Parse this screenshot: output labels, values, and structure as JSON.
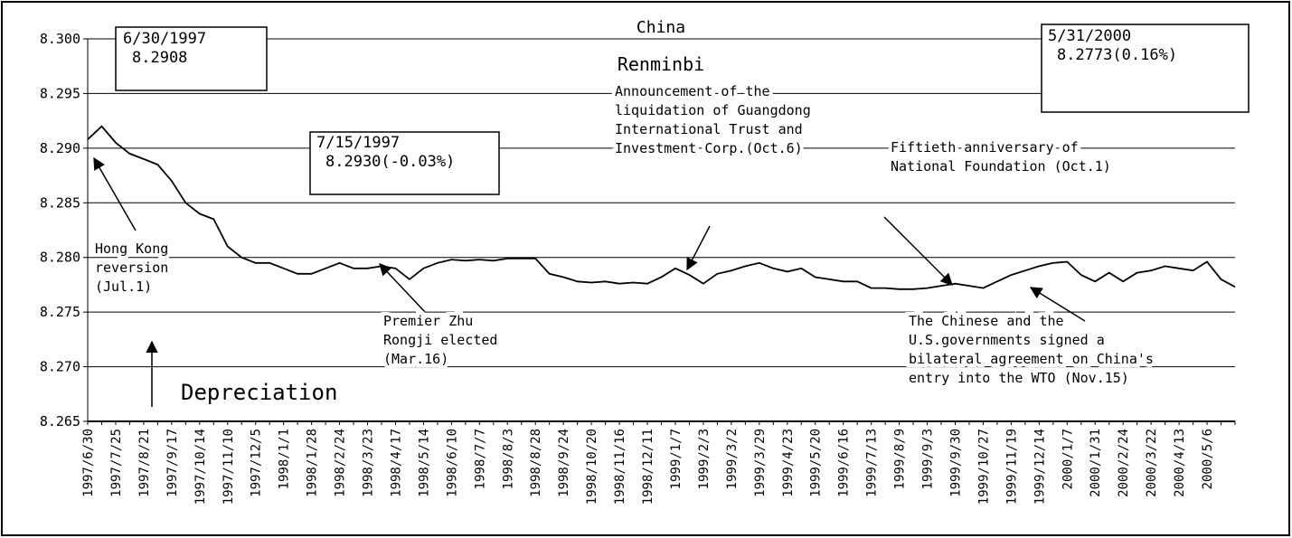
{
  "chart_data": {
    "type": "line",
    "title": "China",
    "subtitle": "Renminbi",
    "categories": [
      "1997/6/30",
      null,
      "1997/7/25",
      null,
      "1997/8/21",
      null,
      "1997/9/17",
      null,
      "1997/10/14",
      null,
      "1997/11/10",
      null,
      "1997/12/5",
      null,
      "1998/1/1",
      null,
      "1998/1/28",
      null,
      "1998/2/24",
      null,
      "1998/3/23",
      null,
      "1998/4/17",
      null,
      "1998/5/14",
      null,
      "1998/6/10",
      null,
      "1998/7/7",
      null,
      "1998/8/3",
      null,
      "1998/8/28",
      null,
      "1998/9/24",
      null,
      "1998/10/20",
      null,
      "1998/11/16",
      null,
      "1998/12/11",
      null,
      "1999/1/7",
      null,
      "1999/2/3",
      null,
      "1999/3/2",
      null,
      "1999/3/29",
      null,
      "1999/4/23",
      null,
      "1999/5/20",
      null,
      "1999/6/16",
      null,
      "1999/7/13",
      null,
      "1999/8/9",
      null,
      "1999/9/3",
      null,
      "1999/9/30",
      null,
      "1999/10/27",
      null,
      "1999/11/19",
      null,
      "1999/12/14",
      null,
      "2000/1/7",
      null,
      "2000/1/31",
      null,
      "2000/2/24",
      null,
      "2000/3/22",
      null,
      "2000/4/13",
      null,
      "2000/5/6",
      null,
      null
    ],
    "series": [
      {
        "name": "Renminbi",
        "color": "#000000",
        "values": [
          8.2908,
          8.292,
          8.2905,
          8.2895,
          8.289,
          8.2885,
          8.287,
          8.285,
          8.284,
          8.2835,
          8.281,
          8.28,
          8.2795,
          8.2795,
          8.279,
          8.2785,
          8.2785,
          8.279,
          8.2795,
          8.279,
          8.279,
          8.2792,
          8.279,
          8.278,
          8.279,
          8.2795,
          8.2798,
          8.2797,
          8.2798,
          8.2797,
          8.2799,
          8.2799,
          8.2799,
          8.2785,
          8.2782,
          8.2778,
          8.2777,
          8.2778,
          8.2776,
          8.2777,
          8.2776,
          8.2782,
          8.279,
          8.2784,
          8.2776,
          8.2785,
          8.2788,
          8.2792,
          8.2795,
          8.279,
          8.2787,
          8.279,
          8.2782,
          8.278,
          8.2778,
          8.2778,
          8.2772,
          8.2772,
          8.2771,
          8.2771,
          8.2772,
          8.2774,
          8.2776,
          8.2774,
          8.2772,
          8.2778,
          8.2784,
          8.2788,
          8.2792,
          8.2795,
          8.2796,
          8.2784,
          8.2778,
          8.2786,
          8.2778,
          8.2786,
          8.2788,
          8.2792,
          8.279,
          8.2788,
          8.2796,
          8.278,
          8.2773
        ]
      }
    ],
    "ylim": [
      8.265,
      8.3
    ],
    "yticks": [
      {
        "value": 8.265,
        "label": "8.265"
      },
      {
        "value": 8.27,
        "label": "8.270"
      },
      {
        "value": 8.275,
        "label": "8.275"
      },
      {
        "value": 8.28,
        "label": "8.280"
      },
      {
        "value": 8.285,
        "label": "8.285"
      },
      {
        "value": 8.29,
        "label": "8.290"
      },
      {
        "value": 8.295,
        "label": "8.295"
      },
      {
        "value": 8.3,
        "label": "8.300"
      }
    ],
    "grid": true,
    "annotations": [
      {
        "text": [
          "6/30/1997",
          "8.2908"
        ]
      },
      {
        "text": [
          "7/15/1997",
          "8.2930(-0.03%)"
        ]
      },
      {
        "text": [
          "5/31/2000",
          "8.2773(0.16%)"
        ]
      },
      {
        "text": [
          "Hong Kong",
          "reversion",
          "(Jul.1)"
        ]
      },
      {
        "text": [
          "Premier Zhu",
          "Rongji elected",
          "(Mar.16)"
        ]
      },
      {
        "text": [
          "Announcement of the",
          "liquidation of Guangdong",
          "International Trust and",
          "Investment Corp.(Oct.6)"
        ]
      },
      {
        "text": [
          "Fiftieth anniversary of",
          "National Foundation (Oct.1)"
        ]
      },
      {
        "text": [
          "The Chinese and the",
          "U.S.governments signed a",
          "bilateral agreement on China's",
          "entry into the WTO (Nov.15)"
        ]
      },
      {
        "text": [
          "Depreciation"
        ]
      }
    ]
  }
}
